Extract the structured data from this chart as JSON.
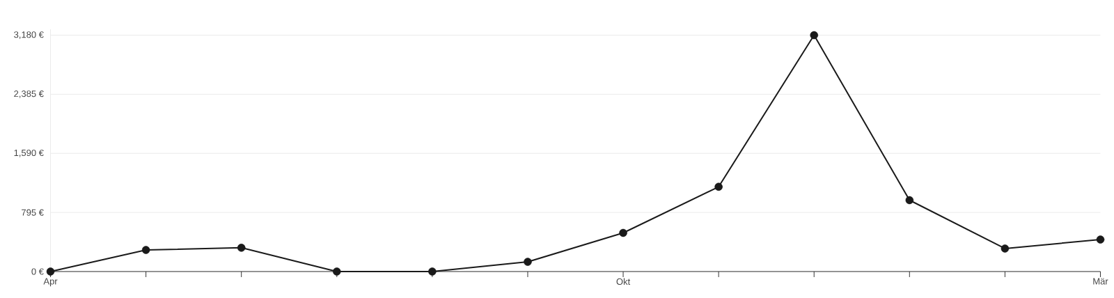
{
  "chart_data": {
    "type": "line",
    "categories": [
      "Apr",
      null,
      null,
      null,
      null,
      null,
      "Okt",
      null,
      null,
      null,
      null,
      "Mär"
    ],
    "series": [
      {
        "color": "#1a1a1a",
        "values": [
          0,
          290,
          320,
          0,
          0,
          130,
          520,
          1140,
          3180,
          960,
          310,
          430
        ]
      }
    ],
    "ylim": [
      0,
      3260
    ],
    "yticks": [
      {
        "value": 0,
        "label": "0 €"
      },
      {
        "value": 795,
        "label": "795 €"
      },
      {
        "value": 1590,
        "label": "1,590 €"
      },
      {
        "value": 2385,
        "label": "2,385 €"
      },
      {
        "value": 3180,
        "label": "3,180 €"
      }
    ],
    "grid": "y",
    "marker": "circle",
    "line_style": "solid"
  }
}
